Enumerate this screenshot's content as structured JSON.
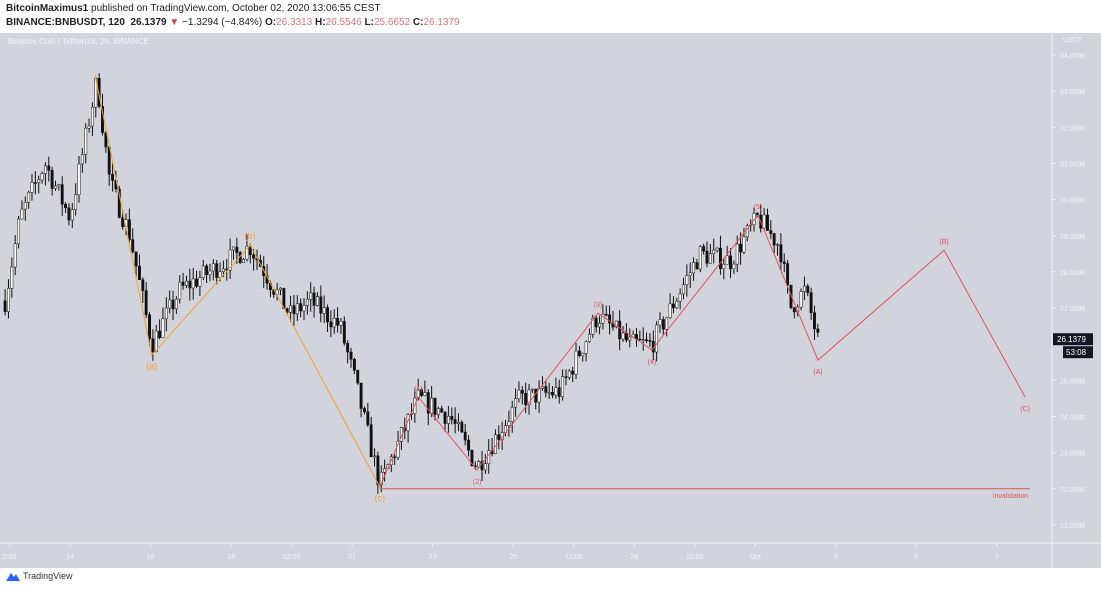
{
  "header": {
    "author": "BitcoinMaximus1",
    "published": "published on TradingView.com, October 02, 2020 13:06:55 CEST",
    "symbol": "BINANCE:BNBUSDT, 120",
    "last": "26.1379",
    "change": "−1.3294 (−4.84%)",
    "o_label": "O:",
    "o": "26.3313",
    "h_label": "H:",
    "h": "26.5546",
    "l_label": "L:",
    "l": "25.6652",
    "c_label": "C:",
    "c": "26.1379"
  },
  "footer": {
    "brand": "TradingView"
  },
  "colors": {
    "bg": "#d1d4dc",
    "orange": "#f5a030",
    "red": "#e05555",
    "text_axis": "#f4f5f7"
  },
  "chart_data": {
    "type": "candlestick",
    "title": "Binance Coin / TetherUS, 2h, BINANCE",
    "ylabel": "USDT",
    "ylim": [
      20.5,
      34.6
    ],
    "xlim_days": [
      12.3,
      38.8
    ],
    "y_ticks": [
      "34.0000",
      "33.0000",
      "32.0000",
      "31.0000",
      "30.0000",
      "29.0000",
      "28.0000",
      "27.0000",
      "25.0000",
      "24.0000",
      "23.0000",
      "22.0000",
      "21.0000"
    ],
    "y_tick_values": [
      34,
      33,
      32,
      31,
      30,
      29,
      28,
      27,
      25,
      24,
      23,
      22,
      21
    ],
    "x_ticks": [
      {
        "label": "2:00",
        "day": 12.5
      },
      {
        "label": "14",
        "day": 14
      },
      {
        "label": "16",
        "day": 16
      },
      {
        "label": "18",
        "day": 18
      },
      {
        "label": "12:00",
        "day": 19.5
      },
      {
        "label": "21",
        "day": 21
      },
      {
        "label": "23",
        "day": 23
      },
      {
        "label": "25",
        "day": 25
      },
      {
        "label": "12:00",
        "day": 26.5
      },
      {
        "label": "28",
        "day": 28
      },
      {
        "label": "12:00",
        "day": 29.5
      },
      {
        "label": "Oct",
        "day": 31
      },
      {
        "label": "3",
        "day": 33
      },
      {
        "label": "5",
        "day": 35
      },
      {
        "label": "7",
        "day": 37
      }
    ],
    "last_price": "26.1379",
    "countdown": "53:08",
    "last_value": 26.1379,
    "price_path": [
      [
        12.39,
        27.2
      ],
      [
        12.76,
        29.5
      ],
      [
        13.38,
        31
      ],
      [
        14.0,
        29.5
      ],
      [
        14.67,
        33.3
      ],
      [
        14.99,
        30.5
      ],
      [
        15.49,
        29.0
      ],
      [
        16.03,
        26.0
      ],
      [
        16.73,
        27.5
      ],
      [
        18.47,
        28.7
      ],
      [
        19.46,
        26.8
      ],
      [
        19.96,
        27.2
      ],
      [
        20.7,
        26.5
      ],
      [
        21.07,
        25.0
      ],
      [
        21.69,
        22.1
      ],
      [
        22.64,
        24.5
      ],
      [
        23.43,
        24.0
      ],
      [
        24.1,
        22.6
      ],
      [
        25.17,
        24.5
      ],
      [
        26.16,
        24.7
      ],
      [
        27.1,
        26.8
      ],
      [
        27.9,
        26.0
      ],
      [
        28.44,
        26.0
      ],
      [
        29.63,
        28.5
      ],
      [
        30.38,
        28.3
      ],
      [
        31.07,
        29.5
      ],
      [
        31.62,
        28.7
      ],
      [
        31.87,
        27.0
      ],
      [
        32.24,
        27.5
      ],
      [
        32.56,
        26.1
      ]
    ],
    "waves": [
      {
        "name": "abc",
        "color": "orange",
        "points": [
          {
            "day": 14.62,
            "price": 33.45,
            "label": ""
          },
          {
            "day": 16.03,
            "price": 25.7,
            "label": "(a)",
            "pos": "below"
          },
          {
            "day": 18.47,
            "price": 28.74,
            "label": "(b)",
            "pos": "above"
          },
          {
            "day": 21.69,
            "price": 22.05,
            "label": "(c)",
            "pos": "below"
          }
        ]
      },
      {
        "name": "impulse",
        "color": "red",
        "points": [
          {
            "day": 21.69,
            "price": 22.05,
            "label": ""
          },
          {
            "day": 22.64,
            "price": 24.54,
            "label": "(1)",
            "pos": "above"
          },
          {
            "day": 24.1,
            "price": 22.52,
            "label": "(2)",
            "pos": "below"
          },
          {
            "day": 27.1,
            "price": 26.86,
            "label": "(3)",
            "pos": "above"
          },
          {
            "day": 28.44,
            "price": 25.84,
            "label": "(4)",
            "pos": "below"
          },
          {
            "day": 31.07,
            "price": 29.57,
            "label": "(5)",
            "pos": "above"
          },
          {
            "day": 32.56,
            "price": 25.56,
            "label": "(A)",
            "pos": "below"
          },
          {
            "day": 35.69,
            "price": 28.6,
            "label": "(B)",
            "pos": "above"
          },
          {
            "day": 37.7,
            "price": 24.54,
            "label": "(C)",
            "pos": "below"
          }
        ]
      }
    ],
    "invalidation": {
      "price": 22.0,
      "from_day": 21.69,
      "label": "invalidation"
    }
  }
}
